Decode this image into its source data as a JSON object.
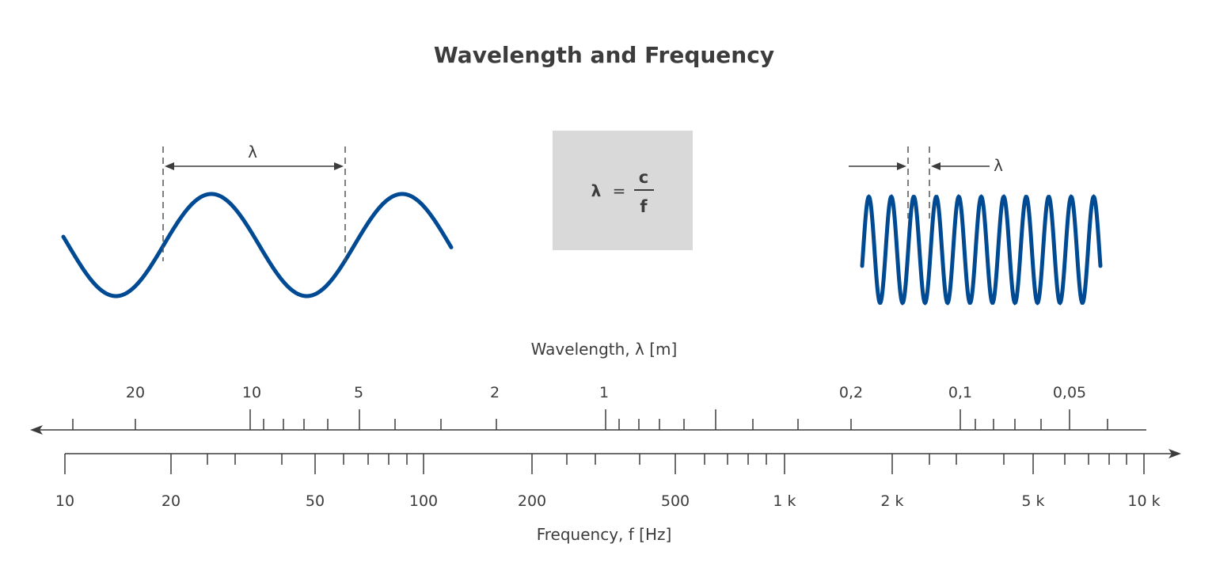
{
  "title": "Wavelength and Frequency",
  "formula": {
    "lhs": "λ",
    "eq": "=",
    "numerator": "c",
    "denominator": "f"
  },
  "left_wave_label": "λ",
  "right_wave_label": "λ",
  "colors": {
    "wave": "#004a93",
    "formula_box": "#d9d9d9",
    "text": "#3c3c3c",
    "axis": "#3c3c3c"
  },
  "wavelength_axis": {
    "label": "Wavelength, λ [m]",
    "direction": "leftward arrow",
    "tick_labels": [
      "20",
      "10",
      "5",
      "2",
      "1",
      "0,2",
      "0,1",
      "0,05"
    ]
  },
  "frequency_axis": {
    "label": "Frequency, f [Hz]",
    "direction": "rightward arrow",
    "scale": "log",
    "tick_labels": [
      "10",
      "20",
      "50",
      "100",
      "200",
      "500",
      "1 k",
      "2 k",
      "5 k",
      "10 k"
    ]
  }
}
